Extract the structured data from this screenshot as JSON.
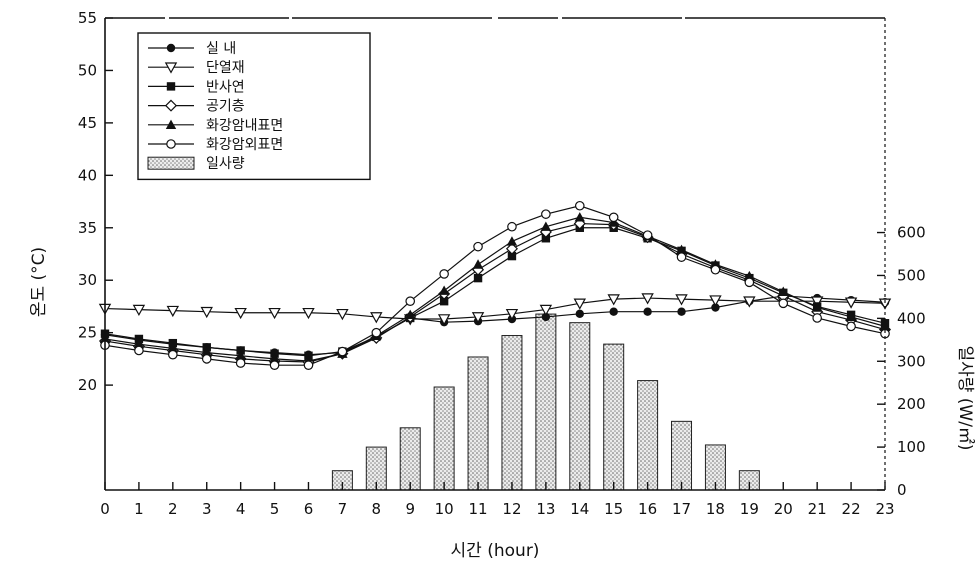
{
  "chart_data": {
    "type": "line",
    "xlabel": "시간 (hour)",
    "ylabel": "온도 (°C)",
    "y2label": "일사량 (W/㎡)",
    "x": [
      0,
      1,
      2,
      3,
      4,
      5,
      6,
      7,
      8,
      9,
      10,
      11,
      12,
      13,
      14,
      15,
      16,
      17,
      18,
      19,
      20,
      21,
      22,
      23
    ],
    "x_ticks": [
      "0",
      "1",
      "2",
      "3",
      "4",
      "5",
      "6",
      "7",
      "8",
      "9",
      "10",
      "11",
      "12",
      "13",
      "14",
      "15",
      "16",
      "17",
      "18",
      "19",
      "20",
      "21",
      "22",
      "23"
    ],
    "ylim": [
      10,
      55
    ],
    "y_ticks": [
      "20",
      "25",
      "30",
      "35",
      "40",
      "45",
      "50",
      "55"
    ],
    "y2lim": [
      0,
      1100
    ],
    "y2_ticks": [
      "0",
      "100",
      "200",
      "300",
      "400",
      "500",
      "600"
    ],
    "grid": false,
    "legend_position": "top-left",
    "series": [
      {
        "name": "실 내",
        "marker": "filled-circle",
        "axis": "left",
        "values": [
          24.8,
          24.3,
          23.9,
          23.6,
          23.3,
          23.1,
          22.9,
          23.1,
          24.6,
          26.4,
          26.0,
          26.1,
          26.3,
          26.5,
          26.8,
          27.0,
          27.0,
          27.0,
          27.4,
          28.0,
          28.5,
          28.3,
          28.1,
          27.9
        ]
      },
      {
        "name": "단열재",
        "marker": "open-triangle-down",
        "axis": "left",
        "values": [
          27.3,
          27.2,
          27.1,
          27.0,
          26.9,
          26.9,
          26.9,
          26.8,
          26.5,
          26.3,
          26.3,
          26.5,
          26.8,
          27.2,
          27.8,
          28.2,
          28.3,
          28.2,
          28.1,
          28.0,
          28.0,
          28.0,
          27.9,
          27.8
        ]
      },
      {
        "name": "반사연",
        "marker": "filled-square",
        "axis": "left",
        "values": [
          24.9,
          24.4,
          24.0,
          23.6,
          23.3,
          23.0,
          22.8,
          23.2,
          24.6,
          26.4,
          28.0,
          30.2,
          32.3,
          34.0,
          35.0,
          35.0,
          34.0,
          32.8,
          31.4,
          30.2,
          28.8,
          27.5,
          26.7,
          25.9
        ]
      },
      {
        "name": "공기층",
        "marker": "open-diamond",
        "axis": "left",
        "values": [
          24.2,
          23.7,
          23.3,
          22.9,
          22.5,
          22.3,
          22.2,
          23.0,
          24.5,
          26.5,
          28.7,
          31.0,
          33.0,
          34.6,
          35.4,
          35.3,
          34.1,
          32.5,
          31.2,
          30.0,
          28.5,
          27.0,
          26.2,
          25.3
        ]
      },
      {
        "name": "화강암내표면",
        "marker": "filled-triangle-up",
        "axis": "left",
        "values": [
          24.4,
          23.9,
          23.5,
          23.1,
          22.8,
          22.5,
          22.3,
          23.0,
          24.7,
          26.7,
          29.0,
          31.5,
          33.7,
          35.1,
          36.0,
          35.5,
          34.2,
          32.9,
          31.5,
          30.4,
          28.9,
          27.4,
          26.5,
          25.6
        ]
      },
      {
        "name": "화강암외표면",
        "marker": "open-circle",
        "axis": "left",
        "values": [
          23.8,
          23.3,
          22.9,
          22.5,
          22.1,
          21.9,
          21.9,
          23.2,
          25.0,
          28.0,
          30.6,
          33.2,
          35.1,
          36.3,
          37.1,
          36.0,
          34.3,
          32.2,
          31.0,
          29.8,
          27.8,
          26.4,
          25.6,
          24.9
        ]
      },
      {
        "name": "일사량",
        "type": "bar",
        "pattern": "hatched",
        "axis": "right",
        "values": [
          0,
          0,
          0,
          0,
          0,
          0,
          0,
          45,
          100,
          145,
          240,
          310,
          360,
          410,
          390,
          340,
          255,
          160,
          105,
          45,
          0,
          0,
          0,
          0
        ]
      }
    ]
  }
}
